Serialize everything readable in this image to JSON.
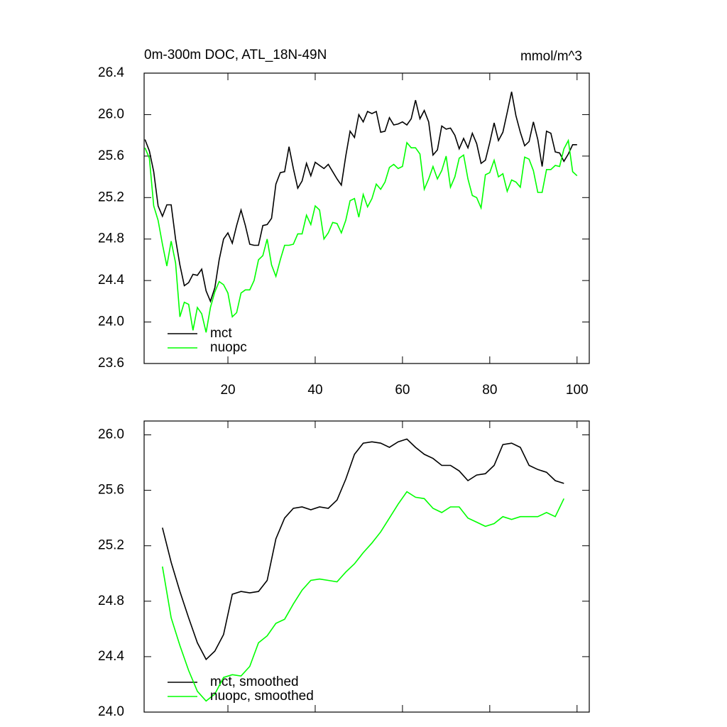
{
  "chart_data": [
    {
      "type": "line",
      "title": "0m-300m DOC, ATL_18N-49N",
      "units": "mmol/m^3",
      "x": [
        1,
        2,
        3,
        4,
        5,
        6,
        7,
        8,
        9,
        10,
        11,
        12,
        13,
        14,
        15,
        16,
        17,
        18,
        19,
        20,
        21,
        22,
        23,
        24,
        25,
        26,
        27,
        28,
        29,
        30,
        31,
        32,
        33,
        34,
        35,
        36,
        37,
        38,
        39,
        40,
        41,
        42,
        43,
        44,
        45,
        46,
        47,
        48,
        49,
        50,
        51,
        52,
        53,
        54,
        55,
        56,
        57,
        58,
        59,
        60,
        61,
        62,
        63,
        64,
        65,
        66,
        67,
        68,
        69,
        70,
        71,
        72,
        73,
        74,
        75,
        76,
        77,
        78,
        79,
        80,
        81,
        82,
        83,
        84,
        85,
        86,
        87,
        88,
        89,
        90,
        91,
        92,
        93,
        94,
        95,
        96,
        97,
        98,
        99,
        100
      ],
      "series": [
        {
          "name": "mct",
          "color": "#000000",
          "values": [
            25.76,
            25.65,
            25.45,
            25.12,
            25.02,
            25.13,
            25.13,
            24.8,
            24.55,
            24.35,
            24.38,
            24.46,
            24.45,
            24.51,
            24.3,
            24.2,
            24.33,
            24.6,
            24.8,
            24.86,
            24.76,
            24.93,
            25.08,
            24.93,
            24.75,
            24.74,
            24.74,
            24.93,
            24.94,
            25.0,
            25.33,
            25.44,
            25.45,
            25.69,
            25.48,
            25.29,
            25.36,
            25.53,
            25.41,
            25.54,
            25.51,
            25.48,
            25.52,
            25.45,
            25.38,
            25.32,
            25.6,
            25.84,
            25.78,
            26.0,
            25.93,
            26.03,
            26.01,
            26.03,
            25.83,
            25.84,
            25.97,
            25.9,
            25.91,
            25.93,
            25.9,
            25.96,
            26.14,
            25.96,
            26.04,
            25.93,
            25.61,
            25.66,
            25.89,
            25.86,
            25.87,
            25.8,
            25.67,
            25.77,
            25.68,
            25.82,
            25.72,
            25.53,
            25.56,
            25.73,
            25.92,
            25.75,
            25.83,
            26.02,
            26.22,
            25.99,
            25.83,
            25.7,
            25.74,
            25.93,
            25.76,
            25.5,
            25.84,
            25.82,
            25.64,
            25.63,
            25.55,
            25.62,
            25.71,
            25.71
          ]
        },
        {
          "name": "nuopc",
          "color": "#00ff00",
          "values": [
            25.68,
            25.58,
            25.12,
            24.98,
            24.75,
            24.54,
            24.78,
            24.57,
            24.05,
            24.19,
            24.17,
            23.92,
            24.14,
            24.08,
            23.9,
            24.14,
            24.29,
            24.39,
            24.36,
            24.28,
            24.05,
            24.09,
            24.28,
            24.31,
            24.31,
            24.4,
            24.6,
            24.64,
            24.8,
            24.55,
            24.44,
            24.6,
            24.74,
            24.74,
            24.75,
            24.85,
            24.85,
            25.03,
            24.94,
            25.12,
            25.08,
            24.8,
            24.86,
            24.96,
            24.95,
            24.86,
            24.98,
            25.17,
            25.19,
            25.01,
            25.23,
            25.11,
            25.19,
            25.33,
            25.28,
            25.35,
            25.49,
            25.52,
            25.48,
            25.5,
            25.73,
            25.68,
            25.68,
            25.62,
            25.28,
            25.38,
            25.5,
            25.38,
            25.46,
            25.6,
            25.3,
            25.4,
            25.58,
            25.61,
            25.38,
            25.22,
            25.2,
            25.1,
            25.42,
            25.44,
            25.56,
            25.4,
            25.43,
            25.26,
            25.37,
            25.35,
            25.3,
            25.59,
            25.57,
            25.46,
            25.25,
            25.25,
            25.47,
            25.47,
            25.51,
            25.5,
            25.67,
            25.75,
            25.45,
            25.41
          ]
        }
      ],
      "xlim": [
        0.8,
        102.8
      ],
      "ylim": [
        23.6,
        26.4
      ],
      "xticks": [
        20,
        40,
        60,
        80,
        100
      ],
      "yticks": [
        {
          "value": 23.6,
          "label": "23.6"
        },
        {
          "value": 24,
          "label": "24.0"
        },
        24.4,
        24.8,
        25.2,
        25.6,
        {
          "value": 26,
          "label": "26.0"
        },
        26.4
      ],
      "legend": "lower left"
    },
    {
      "type": "line",
      "x": [
        5,
        7,
        9,
        11,
        13,
        15,
        17,
        19,
        21,
        23,
        25,
        27,
        29,
        31,
        33,
        35,
        37,
        39,
        41,
        43,
        45,
        47,
        49,
        51,
        53,
        55,
        57,
        59,
        61,
        63,
        65,
        67,
        69,
        71,
        73,
        75,
        77,
        79,
        81,
        83,
        85,
        87,
        89,
        91,
        93,
        95,
        97
      ],
      "series": [
        {
          "name": "mct, smoothed",
          "color": "#000000",
          "values": [
            25.33,
            25.08,
            24.87,
            24.68,
            24.5,
            24.38,
            24.44,
            24.56,
            24.85,
            24.87,
            24.86,
            24.87,
            24.95,
            25.25,
            25.4,
            25.47,
            25.48,
            25.46,
            25.48,
            25.47,
            25.53,
            25.68,
            25.86,
            25.94,
            25.95,
            25.94,
            25.91,
            25.95,
            25.97,
            25.91,
            25.86,
            25.83,
            25.78,
            25.78,
            25.74,
            25.67,
            25.71,
            25.72,
            25.78,
            25.93,
            25.94,
            25.91,
            25.78,
            25.75,
            25.73,
            25.67,
            25.65
          ]
        },
        {
          "name": "nuopc, smoothed",
          "color": "#00ff00",
          "values": [
            25.05,
            24.68,
            24.48,
            24.3,
            24.15,
            24.08,
            24.13,
            24.25,
            24.27,
            24.26,
            24.33,
            24.5,
            24.55,
            24.64,
            24.67,
            24.78,
            24.88,
            24.95,
            24.96,
            24.95,
            24.94,
            25.01,
            25.07,
            25.15,
            25.22,
            25.3,
            25.4,
            25.5,
            25.59,
            25.55,
            25.54,
            25.47,
            25.44,
            25.48,
            25.48,
            25.4,
            25.37,
            25.34,
            25.36,
            25.41,
            25.39,
            25.41,
            25.41,
            25.41,
            25.44,
            25.41,
            25.54
          ]
        }
      ],
      "xlim": [
        0.8,
        102.8
      ],
      "ylim": [
        24.0,
        26.1
      ],
      "yticks": [
        {
          "value": 24,
          "label": "24.0"
        },
        24.4,
        24.8,
        25.2,
        25.6,
        {
          "value": 26,
          "label": "26.0"
        }
      ],
      "legend": "lower left"
    }
  ]
}
